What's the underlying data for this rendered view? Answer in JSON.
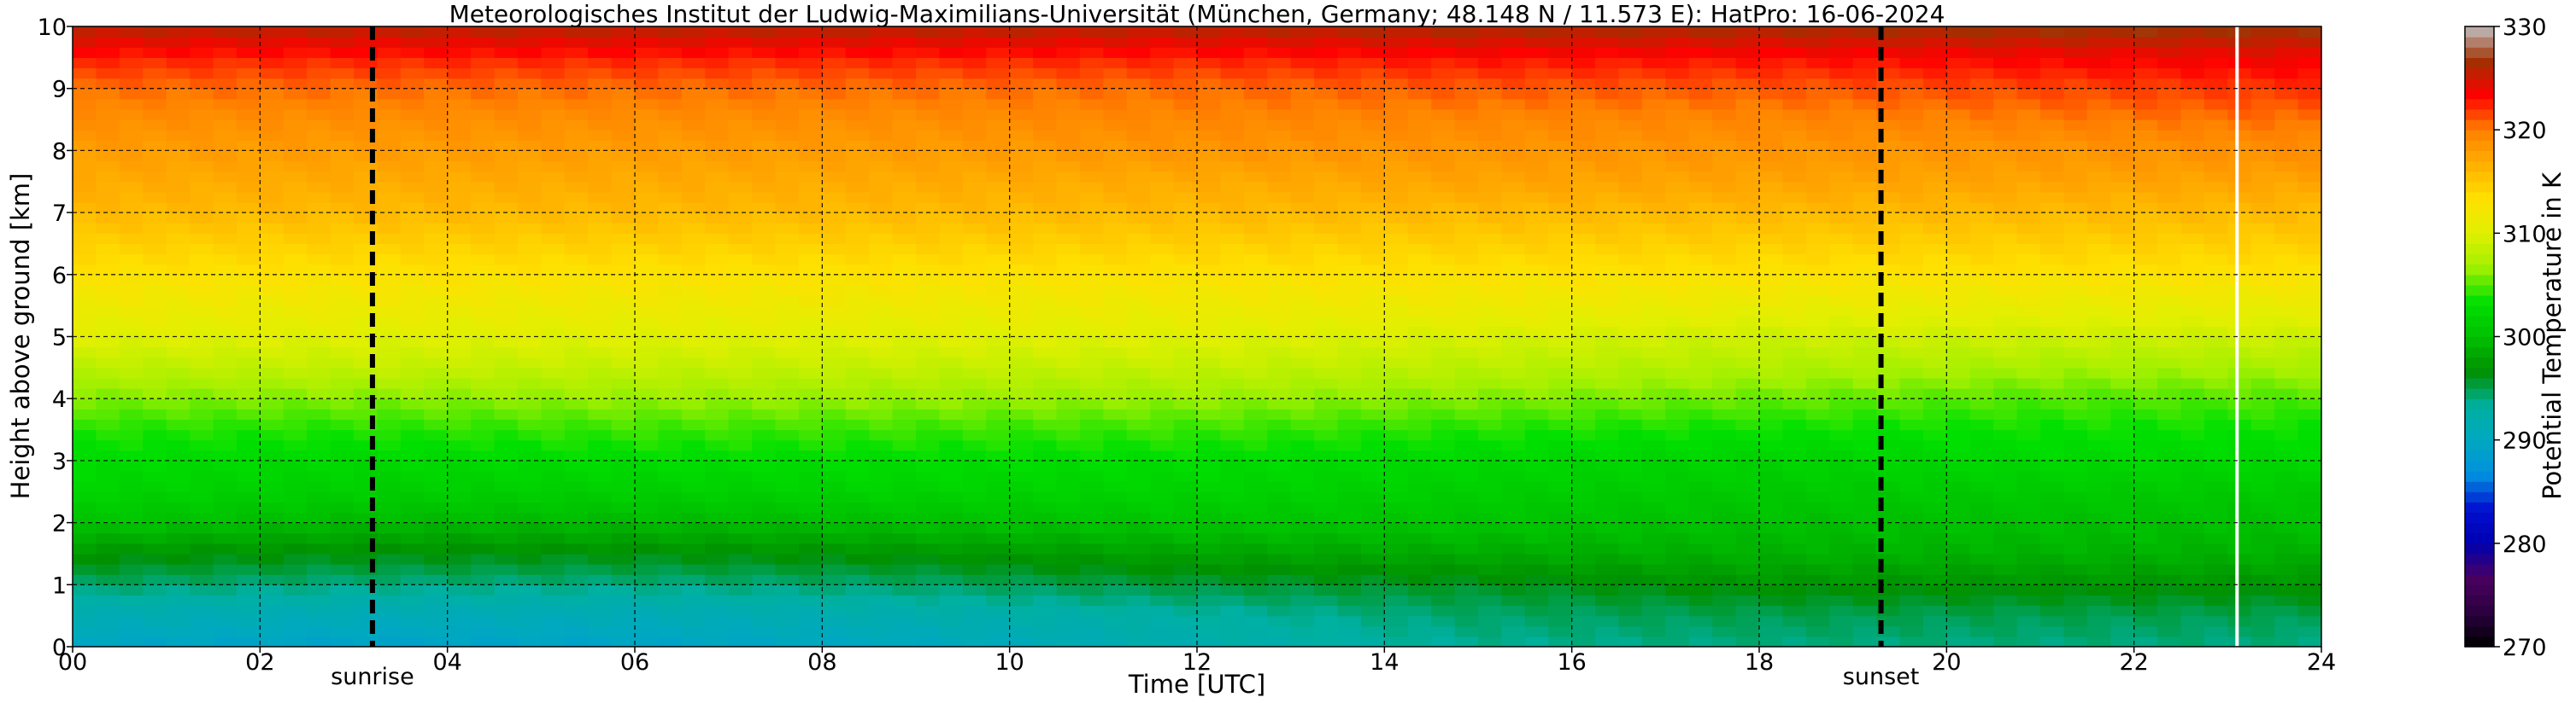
{
  "chart_data": {
    "type": "heatmap",
    "title": "Meteorologisches Institut der Ludwig-Maximilians-Universität (München, Germany; 48.148 N / 11.573 E):    HatPro: 16-06-2024",
    "xlabel": "Time [UTC]",
    "ylabel": "Height above ground [km]",
    "xlim": [
      0,
      24
    ],
    "ylim": [
      0,
      10
    ],
    "x_ticks": [
      "00",
      "02",
      "04",
      "06",
      "08",
      "10",
      "12",
      "14",
      "16",
      "18",
      "20",
      "22",
      "24"
    ],
    "y_ticks": [
      "0",
      "1",
      "2",
      "3",
      "4",
      "5",
      "6",
      "7",
      "8",
      "9",
      "10"
    ],
    "grid": true,
    "colorbar": {
      "label": "Potential Temperature in K",
      "range": [
        270,
        330
      ],
      "ticks": [
        "270",
        "280",
        "290",
        "300",
        "310",
        "320",
        "330"
      ],
      "colors": [
        "#000000",
        "#2b0040",
        "#4a0060",
        "#0000b0",
        "#0010d0",
        "#0090e0",
        "#00a8c0",
        "#00b0a0",
        "#009000",
        "#00c000",
        "#00e000",
        "#a0f000",
        "#e0f000",
        "#ffe000",
        "#ffb000",
        "#ff8000",
        "#ff0000",
        "#a03000",
        "#c0c0c0"
      ]
    },
    "markers": [
      {
        "label": "sunrise",
        "x": 3.2
      },
      {
        "label": "sunset",
        "x": 19.3
      }
    ],
    "data_gap_x": 23.1,
    "heights_km": [
      0,
      0.5,
      1,
      1.5,
      2,
      2.5,
      3,
      3.5,
      4,
      4.5,
      5,
      5.5,
      6,
      6.5,
      7,
      7.5,
      8,
      8.5,
      9,
      9.5,
      10
    ],
    "times_h": [
      0,
      3,
      6,
      9,
      12,
      15,
      18,
      21,
      24
    ],
    "theta_K": [
      [
        289.5,
        291.5,
        294.5,
        297.0,
        300.5,
        302.0,
        303.0,
        304.0,
        306.0,
        308.0,
        310.0,
        311.5,
        313.0,
        314.5,
        316.0,
        317.0,
        318.0,
        319.0,
        320.5,
        322.5,
        326.0
      ],
      [
        289.0,
        291.0,
        294.0,
        296.5,
        299.5,
        301.5,
        302.5,
        304.0,
        306.0,
        308.5,
        310.0,
        311.5,
        313.0,
        314.5,
        316.0,
        317.0,
        318.0,
        319.0,
        320.5,
        322.5,
        326.0
      ],
      [
        289.2,
        291.0,
        294.0,
        296.5,
        299.5,
        301.5,
        303.0,
        304.5,
        306.5,
        308.5,
        310.0,
        311.5,
        313.0,
        314.5,
        316.0,
        317.0,
        318.0,
        319.0,
        320.5,
        322.5,
        326.0
      ],
      [
        290.0,
        292.0,
        294.5,
        297.0,
        300.0,
        302.0,
        303.0,
        304.5,
        306.5,
        308.5,
        310.0,
        311.5,
        313.0,
        314.5,
        316.0,
        317.0,
        318.0,
        319.0,
        320.5,
        322.5,
        326.0
      ],
      [
        292.0,
        293.0,
        295.5,
        298.0,
        300.5,
        302.0,
        303.0,
        304.5,
        306.5,
        308.5,
        310.0,
        311.5,
        313.0,
        314.5,
        316.0,
        317.0,
        318.5,
        319.5,
        320.5,
        322.5,
        326.0
      ],
      [
        293.5,
        294.5,
        296.0,
        298.5,
        300.5,
        301.5,
        302.5,
        304.0,
        306.0,
        308.0,
        309.5,
        311.5,
        313.0,
        314.5,
        316.0,
        317.5,
        318.5,
        319.5,
        321.0,
        323.0,
        326.5
      ],
      [
        294.0,
        295.0,
        297.0,
        299.0,
        300.0,
        301.0,
        302.0,
        303.5,
        305.5,
        307.5,
        309.0,
        311.0,
        313.0,
        314.5,
        316.0,
        317.5,
        318.5,
        319.5,
        321.0,
        323.0,
        326.5
      ],
      [
        294.0,
        295.0,
        297.0,
        299.0,
        300.0,
        301.0,
        302.5,
        303.5,
        305.0,
        307.0,
        309.0,
        311.0,
        313.0,
        314.5,
        316.0,
        317.5,
        318.5,
        320.0,
        321.5,
        323.5,
        327.0
      ],
      [
        294.0,
        295.0,
        297.0,
        299.0,
        300.0,
        301.0,
        302.5,
        303.5,
        305.0,
        307.0,
        309.0,
        311.0,
        313.0,
        314.5,
        316.0,
        317.5,
        319.0,
        320.5,
        322.0,
        324.0,
        327.0
      ]
    ]
  }
}
